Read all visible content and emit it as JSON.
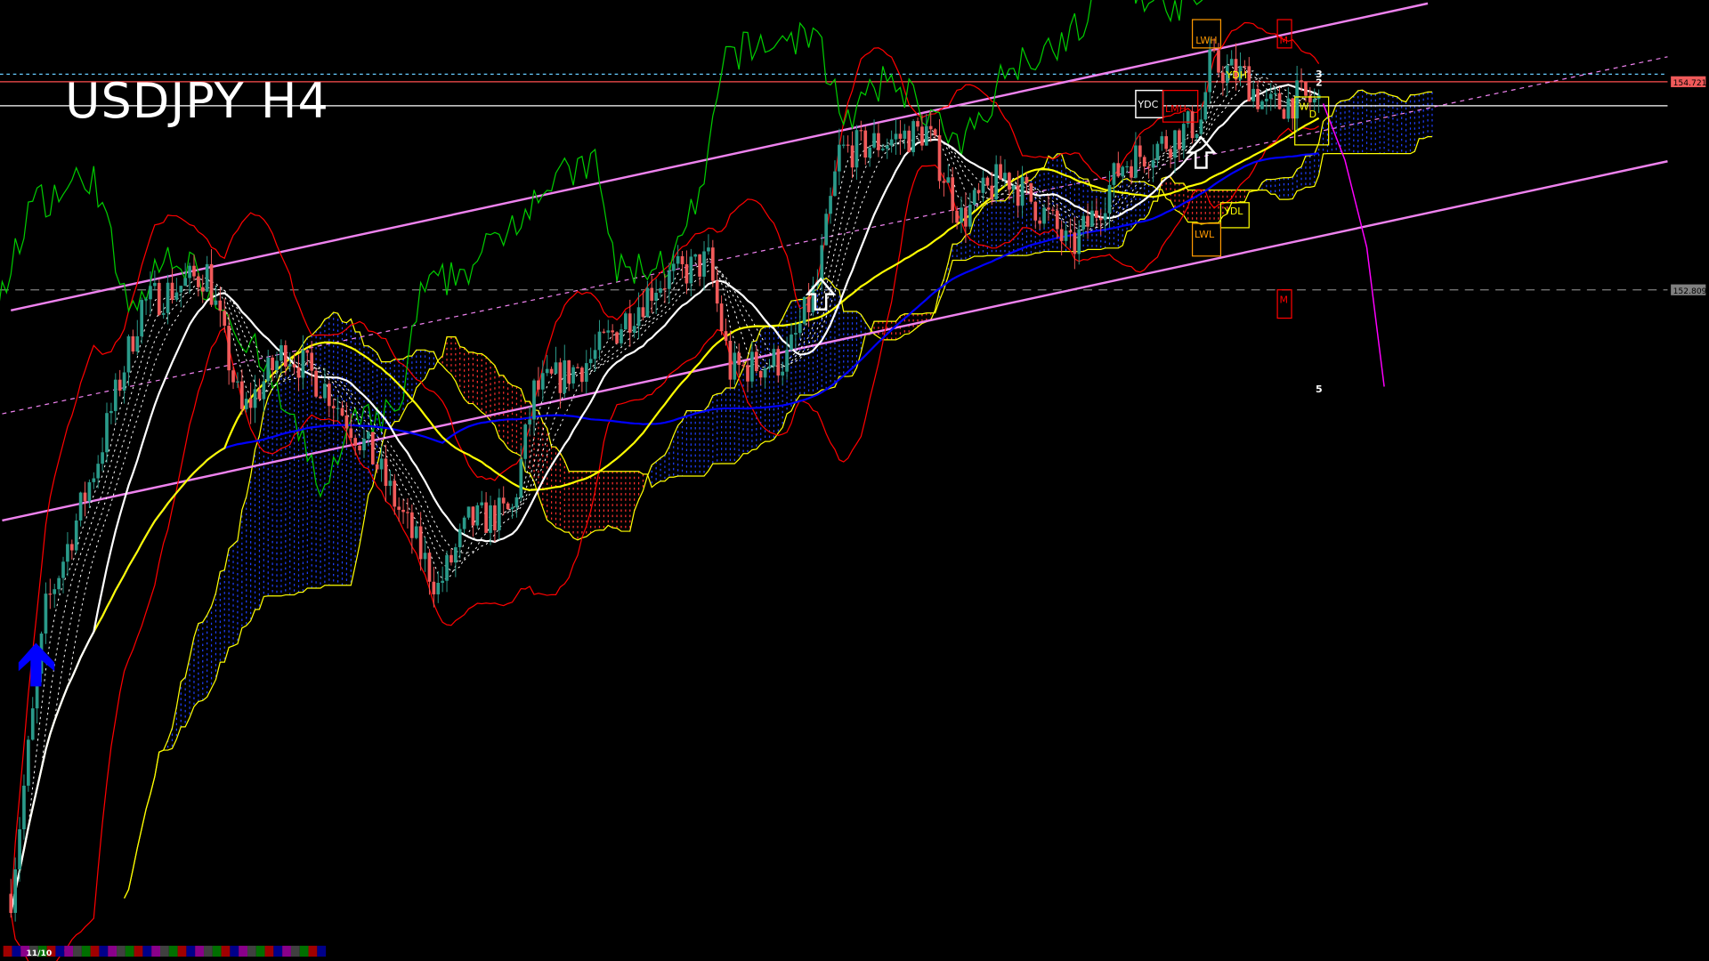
{
  "window": {
    "title": "USDJPY H4"
  },
  "chart_data": {
    "type": "candlestick",
    "symbol": "USDJPY",
    "timeframe": "H4",
    "ylim": [
      146.64,
      155.47
    ],
    "grid": false,
    "price_trend": [
      [
        0,
        147.26
      ],
      [
        8,
        149.87
      ],
      [
        20,
        151.27
      ],
      [
        30,
        152.67
      ],
      [
        45,
        152.97
      ],
      [
        53,
        151.67
      ],
      [
        63,
        152.27
      ],
      [
        73,
        151.87
      ],
      [
        83,
        151.27
      ],
      [
        98,
        150.07
      ],
      [
        105,
        150.67
      ],
      [
        115,
        150.77
      ],
      [
        120,
        151.87
      ],
      [
        133,
        152.17
      ],
      [
        148,
        152.87
      ],
      [
        160,
        153.07
      ],
      [
        165,
        152.07
      ],
      [
        178,
        152.17
      ],
      [
        185,
        152.87
      ],
      [
        190,
        154.07
      ],
      [
        210,
        154.27
      ],
      [
        218,
        153.47
      ],
      [
        228,
        153.87
      ],
      [
        238,
        153.47
      ],
      [
        243,
        153.17
      ],
      [
        248,
        153.47
      ],
      [
        255,
        153.97
      ],
      [
        265,
        154.17
      ],
      [
        273,
        154.37
      ],
      [
        275,
        154.87
      ],
      [
        283,
        154.77
      ],
      [
        288,
        154.47
      ],
      [
        295,
        154.57
      ],
      [
        300,
        154.52
      ]
    ],
    "colors": {
      "bull": "#2a9a8a",
      "bear": "#f05a5a",
      "ma_fast": "#ffffff",
      "ma_mid": "#ffff00",
      "ma_slow": "#0000ff",
      "bollinger": "#ff0000",
      "chikou": "#00cc00",
      "cloud_up": "#2040ff",
      "cloud_down": "#ff3030",
      "cloud_edge": "#ffff00",
      "channel": "#ee82ee",
      "projection": "#ff00ff"
    },
    "price_labels": [
      {
        "value": "154.721",
        "price": 154.721,
        "bg": "#f05a5a",
        "line": "#ff5050"
      },
      {
        "value": "152.809",
        "price": 152.809,
        "bg": "#808080",
        "line": "#808080"
      }
    ],
    "horizontal_lines": [
      {
        "price": 154.79,
        "color": "#66ccff",
        "style": "dashed"
      },
      {
        "price": 154.5,
        "color": "#ffffff",
        "style": "solid"
      }
    ],
    "channel": {
      "upper": [
        [
          0,
          152.62
        ],
        [
          325,
          155.44
        ]
      ],
      "middle": [
        [
          -2,
          151.67
        ],
        [
          380,
          154.95
        ]
      ],
      "lower": [
        [
          -2,
          150.69
        ],
        [
          380,
          153.99
        ]
      ]
    },
    "projection": [
      [
        301,
        154.52
      ],
      [
        306,
        154.0
      ],
      [
        311,
        153.2
      ],
      [
        315,
        151.92
      ]
    ],
    "level_labels": [
      {
        "text": "LWH",
        "color": "#ff9900",
        "box": true
      },
      {
        "text": "M",
        "color": "#ff0000",
        "box": true
      },
      {
        "text": "YDH",
        "color": "#ffff00",
        "box": false
      },
      {
        "text": "YDC",
        "color": "#ffffff",
        "box": true
      },
      {
        "text": "LMH",
        "color": "#ff0000",
        "box": true
      },
      {
        "text": "W",
        "color": "#ffff00",
        "box": true
      },
      {
        "text": "D",
        "color": "#ffff00",
        "box": false
      },
      {
        "text": "YDL",
        "color": "#ffff00",
        "box": true
      },
      {
        "text": "LWL",
        "color": "#ff9900",
        "box": true
      },
      {
        "text": "M",
        "color": "#ff0000",
        "box": true
      }
    ],
    "wave_labels": [
      "3",
      "2",
      "5"
    ],
    "date_label": "11/10",
    "session_bar_colors": [
      "#a00000",
      "#00008a",
      "#8a008a",
      "#404040",
      "#007000"
    ]
  }
}
